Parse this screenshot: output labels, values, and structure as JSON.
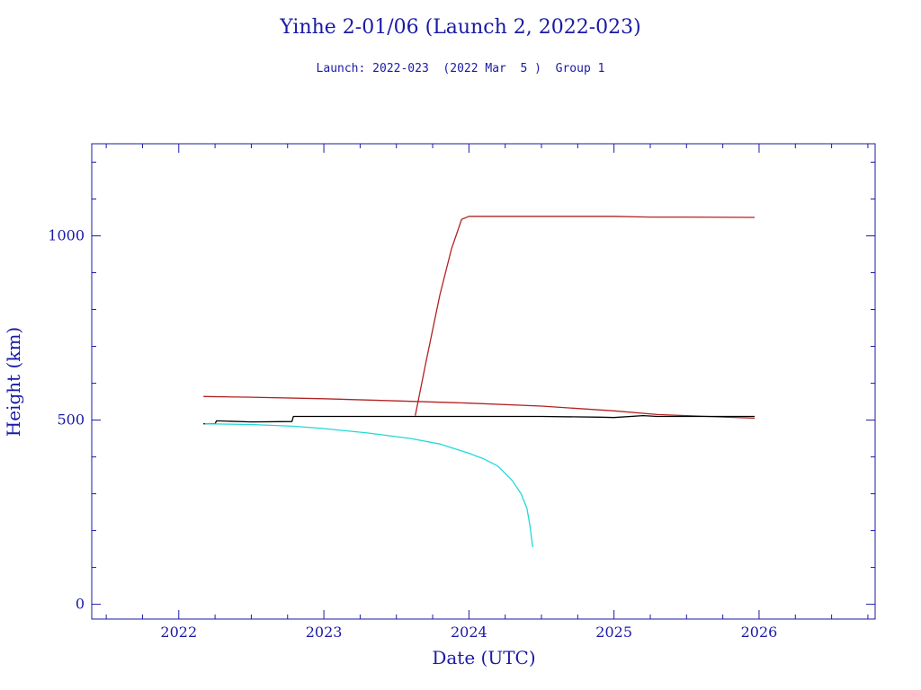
{
  "chart_data": {
    "type": "line",
    "title": "Yinhe 2-01/06 (Launch 2, 2022-023)",
    "subtitle": "Launch: 2022-023  (2022 Mar  5 )  Group 1",
    "xlabel": "Date (UTC)",
    "ylabel": "Height (km)",
    "xlim": [
      2021.4,
      2026.8
    ],
    "ylim": [
      -40,
      1250
    ],
    "x_ticks": [
      "2022",
      "2023",
      "2024",
      "2025",
      "2026"
    ],
    "y_ticks": [
      "0",
      "500",
      "1000"
    ],
    "grid": false,
    "series": [
      {
        "color": "#b22222",
        "x": [
          2022.17,
          2022.5,
          2023.0,
          2023.5,
          2024.0,
          2024.5,
          2025.0,
          2025.3,
          2025.5,
          2025.97
        ],
        "y": [
          564,
          562,
          558,
          552,
          546,
          538,
          525,
          515,
          512,
          505
        ]
      },
      {
        "color": "#b22222",
        "x": [
          2023.63,
          2023.7,
          2023.8,
          2023.88,
          2023.95,
          2024.0,
          2024.5,
          2025.0,
          2025.25,
          2025.5,
          2025.97
        ],
        "y": [
          512,
          650,
          840,
          965,
          1045,
          1053,
          1053,
          1053,
          1051,
          1051,
          1050
        ]
      },
      {
        "color": "#000000",
        "x": [
          2022.17,
          2022.25,
          2022.26,
          2022.5,
          2022.78,
          2022.79,
          2023.0,
          2023.5,
          2024.0,
          2024.5,
          2024.9,
          2025.0,
          2025.2,
          2025.3,
          2025.5,
          2025.97
        ],
        "y": [
          490,
          490,
          498,
          495,
          496,
          510,
          510,
          510,
          510,
          510,
          508,
          507,
          512,
          510,
          510,
          510
        ]
      },
      {
        "color": "#22d8d8",
        "x": [
          2022.18,
          2022.5,
          2022.8,
          2023.0,
          2023.3,
          2023.6,
          2023.8,
          2024.0,
          2024.1,
          2024.2,
          2024.3,
          2024.36,
          2024.4,
          2024.42,
          2024.44
        ],
        "y": [
          490,
          488,
          483,
          477,
          465,
          450,
          435,
          410,
          395,
          375,
          335,
          300,
          260,
          215,
          155
        ]
      }
    ]
  }
}
